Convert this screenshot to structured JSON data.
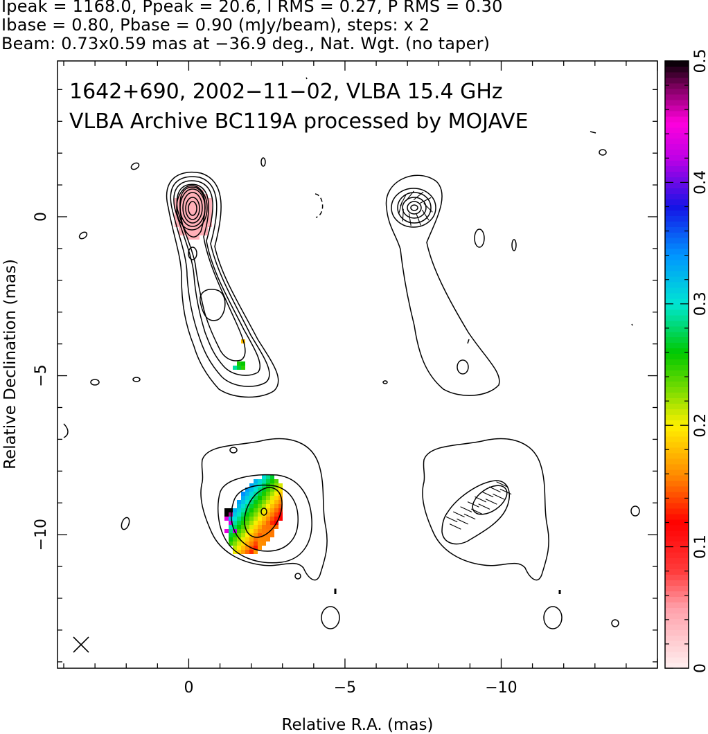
{
  "header": {
    "line1": "Ipeak = 1168.0, Ppeak = 20.6, I RMS = 0.27, P RMS = 0.30",
    "line2": "Ibase = 0.80, Pbase = 0.90 (mJy/beam), steps: x 2",
    "line3": "Beam: 0.73x0.59 mas at −36.9 deg., Nat. Wgt. (no taper)"
  },
  "annotation": {
    "line1": "1642+690, 2002−11−02, VLBA 15.4 GHz",
    "line2": "VLBA Archive BC119A processed by MOJAVE"
  },
  "chart_data": {
    "type": "heatmap",
    "title": "",
    "xlabel": "Relative R.A. (mas)",
    "ylabel": "Relative Declination (mas)",
    "xlim": [
      4.2,
      -15
    ],
    "ylim": [
      -14.2,
      4.9
    ],
    "x_ticks": [
      0,
      -5,
      -10
    ],
    "x_tick_labels": [
      "0",
      "−5",
      "−10"
    ],
    "y_ticks": [
      0,
      -5,
      -10
    ],
    "y_tick_labels": [
      "0",
      "−5",
      "−10"
    ],
    "colorbar": {
      "range": [
        0,
        0.5
      ],
      "ticks": [
        0,
        0.1,
        0.2,
        0.3,
        0.4,
        0.5
      ],
      "tick_labels": [
        "0",
        "0.1",
        "0.2",
        "0.3",
        "0.4",
        "0.5"
      ]
    },
    "panels": [
      {
        "name": "total intensity with fractional polarization",
        "position": "top-left"
      },
      {
        "name": "total intensity with EVPA",
        "position": "top-right"
      },
      {
        "name": "fractional polarization map",
        "position": "bottom-left"
      },
      {
        "name": "polarization vectors",
        "position": "bottom-right"
      }
    ],
    "beam": {
      "major_mas": 0.73,
      "minor_mas": 0.59,
      "pa_deg": -36.9
    },
    "peak_intensity_mJy_per_beam": 1168.0,
    "peak_polarization_mJy_per_beam": 20.6
  }
}
